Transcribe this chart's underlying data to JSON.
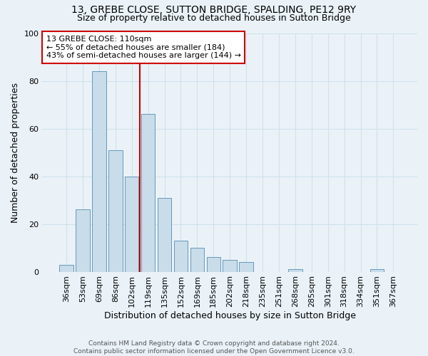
{
  "title": "13, GREBE CLOSE, SUTTON BRIDGE, SPALDING, PE12 9RY",
  "subtitle": "Size of property relative to detached houses in Sutton Bridge",
  "xlabel": "Distribution of detached houses by size in Sutton Bridge",
  "ylabel": "Number of detached properties",
  "categories": [
    "36sqm",
    "53sqm",
    "69sqm",
    "86sqm",
    "102sqm",
    "119sqm",
    "135sqm",
    "152sqm",
    "169sqm",
    "185sqm",
    "202sqm",
    "218sqm",
    "235sqm",
    "251sqm",
    "268sqm",
    "285sqm",
    "301sqm",
    "318sqm",
    "334sqm",
    "351sqm",
    "367sqm"
  ],
  "values": [
    3,
    26,
    84,
    51,
    40,
    66,
    31,
    13,
    10,
    6,
    5,
    4,
    0,
    0,
    1,
    0,
    0,
    0,
    0,
    1,
    0
  ],
  "bar_color": "#c9dcea",
  "bar_edge_color": "#6699bb",
  "vline_x_index": 4,
  "vline_color": "#cc0000",
  "annotation_text": "13 GREBE CLOSE: 110sqm\n← 55% of detached houses are smaller (184)\n43% of semi-detached houses are larger (144) →",
  "annotation_box_color": "#ffffff",
  "annotation_box_edge_color": "#cc0000",
  "ylim": [
    0,
    100
  ],
  "yticks": [
    0,
    20,
    40,
    60,
    80,
    100
  ],
  "grid_color": "#d0e0ea",
  "background_color": "#eaf2f8",
  "footer_text": "Contains HM Land Registry data © Crown copyright and database right 2024.\nContains public sector information licensed under the Open Government Licence v3.0.",
  "title_fontsize": 10,
  "subtitle_fontsize": 9,
  "ylabel_fontsize": 9,
  "xlabel_fontsize": 9,
  "tick_fontsize": 8,
  "footer_fontsize": 6.5,
  "annotation_fontsize": 8
}
